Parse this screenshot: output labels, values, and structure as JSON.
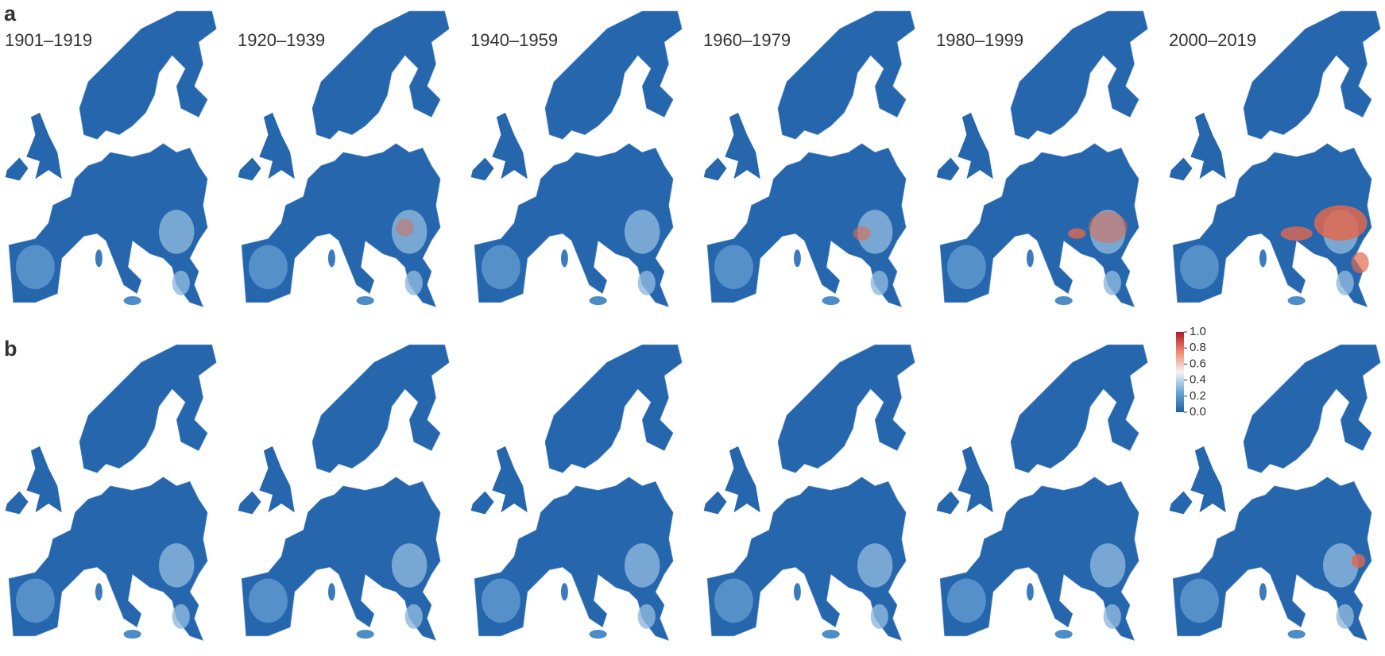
{
  "panels": [
    {
      "label": "a"
    },
    {
      "label": "b"
    }
  ],
  "periods": [
    "1901–1919",
    "1920–1939",
    "1940–1959",
    "1960–1979",
    "1980–1999",
    "2000–2019"
  ],
  "colorbar": {
    "lim": [
      0,
      1
    ],
    "ticks": [
      {
        "value": 0,
        "label": "0.0"
      },
      0.2,
      0.4,
      0.6,
      0.8,
      {
        "value": 1,
        "label": "1.0"
      }
    ],
    "colors": [
      "#1d5fa6",
      "#6aa6d3",
      "#f4f4f4",
      "#ef8a6a",
      "#b2182b"
    ]
  }
}
